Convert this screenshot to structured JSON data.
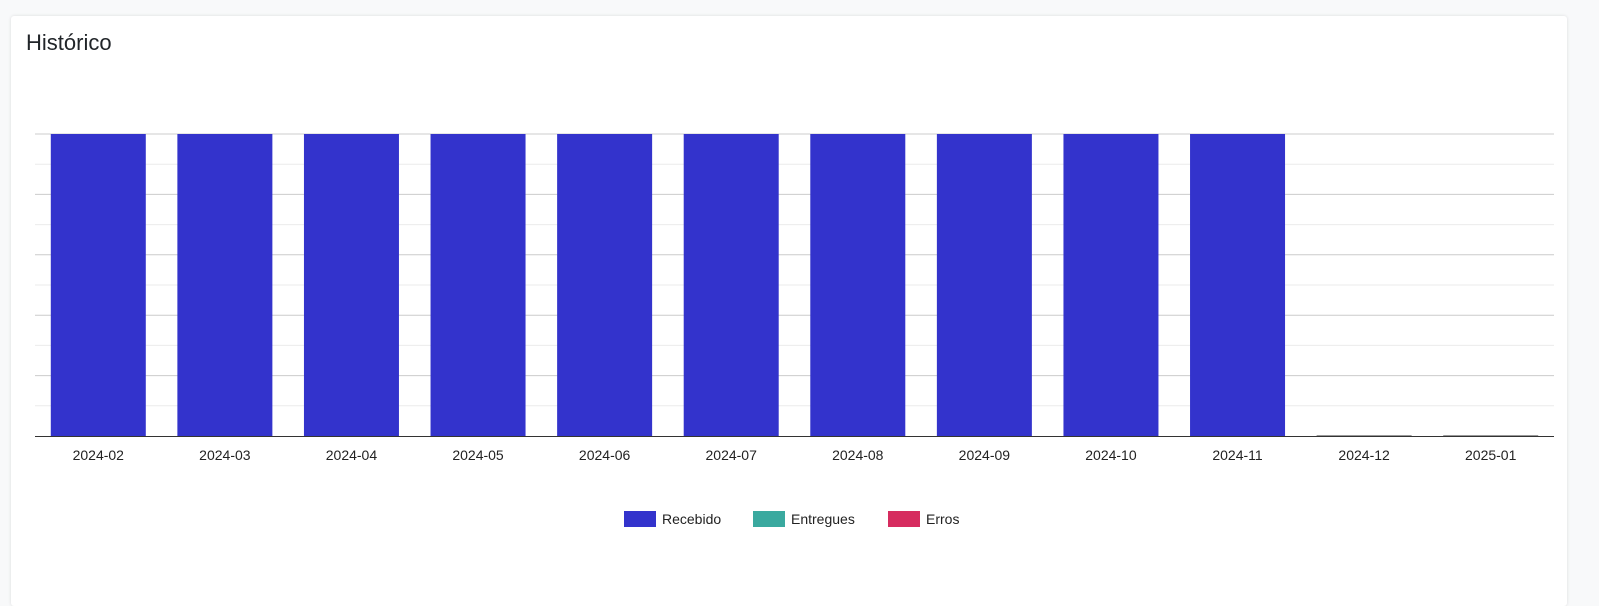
{
  "card": {
    "title": "Histórico"
  },
  "chart_data": {
    "type": "bar",
    "categories": [
      "2024-02",
      "2024-03",
      "2024-04",
      "2024-05",
      "2024-06",
      "2024-07",
      "2024-08",
      "2024-09",
      "2024-10",
      "2024-11",
      "2024-12",
      "2025-01"
    ],
    "series": [
      {
        "name": "Recebido",
        "color": "#3333cc",
        "values": [
          1,
          1,
          1,
          1,
          1,
          1,
          1,
          1,
          1,
          1,
          0,
          0
        ]
      },
      {
        "name": "Entregues",
        "color": "#3aa99f",
        "values": [
          0,
          0,
          0,
          0,
          0,
          0,
          0,
          0,
          0,
          0,
          0,
          0
        ]
      },
      {
        "name": "Erros",
        "color": "#d62c5f",
        "values": [
          0,
          0,
          0,
          0,
          0,
          0,
          0,
          0,
          0,
          0,
          0,
          0
        ]
      }
    ],
    "ylim": [
      0,
      1
    ],
    "grid": true,
    "legend_position": "bottom",
    "title": "",
    "xlabel": "",
    "ylabel": ""
  }
}
